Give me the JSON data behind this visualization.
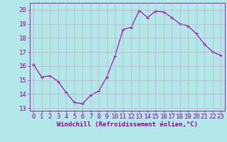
{
  "x": [
    0,
    1,
    2,
    3,
    4,
    5,
    6,
    7,
    8,
    9,
    10,
    11,
    12,
    13,
    14,
    15,
    16,
    17,
    18,
    19,
    20,
    21,
    22,
    23
  ],
  "y": [
    16.1,
    15.2,
    15.3,
    14.9,
    14.1,
    13.4,
    13.3,
    13.9,
    14.2,
    15.2,
    16.7,
    18.6,
    18.75,
    19.95,
    19.45,
    19.9,
    19.85,
    19.45,
    19.0,
    18.85,
    18.3,
    17.55,
    17.0,
    16.75
  ],
  "line_color": "#990099",
  "marker_color": "#990099",
  "bg_color": "#b3e8e8",
  "grid_color": "#cc99cc",
  "xlabel": "Windchill (Refroidissement éolien,°C)",
  "ylim": [
    12.8,
    20.5
  ],
  "yticks": [
    13,
    14,
    15,
    16,
    17,
    18,
    19,
    20
  ],
  "xlim": [
    -0.5,
    23.5
  ],
  "xticks": [
    0,
    1,
    2,
    3,
    4,
    5,
    6,
    7,
    8,
    9,
    10,
    11,
    12,
    13,
    14,
    15,
    16,
    17,
    18,
    19,
    20,
    21,
    22,
    23
  ],
  "label_color": "#990099",
  "tick_color": "#990099",
  "font_size_xlabel": 6.5,
  "font_size_ticks": 6.5
}
